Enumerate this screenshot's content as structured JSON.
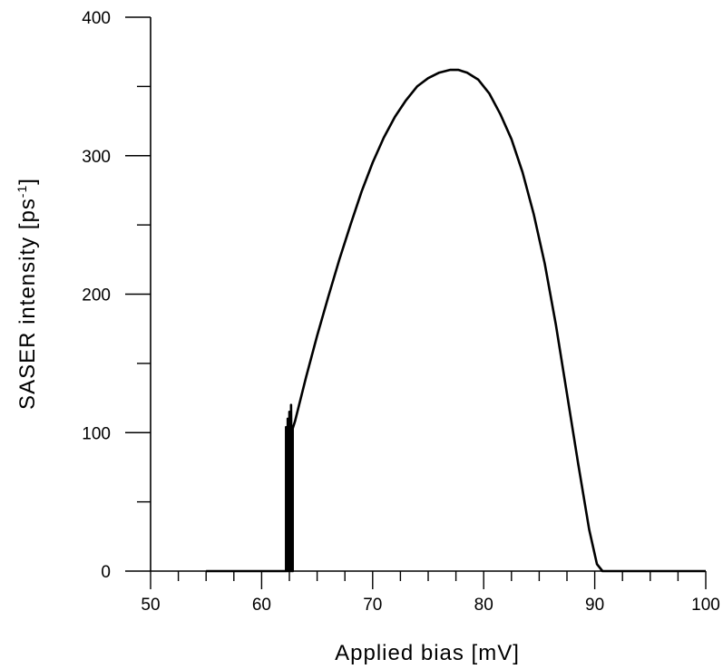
{
  "chart_data": {
    "type": "line",
    "xlabel": "Applied bias [mV]",
    "ylabel": "SASER intensity [ps",
    "ylabel_exponent": "-1",
    "ylabel_close": "]",
    "xlim": [
      50,
      100
    ],
    "ylim": [
      0,
      400
    ],
    "xticks": [
      50,
      60,
      70,
      80,
      90,
      100
    ],
    "yticks": [
      0,
      100,
      200,
      300,
      400
    ],
    "x_minor_step": 2.5,
    "y_minor_step": 50,
    "grid": false,
    "line_color": "#000000",
    "series": [
      {
        "x": [
          55,
          62.2,
          62.2,
          62.35,
          62.35,
          62.5,
          62.5,
          62.65,
          62.65,
          62.8,
          62.8,
          63.0,
          64,
          65,
          66,
          67,
          68,
          69,
          70,
          71,
          72,
          73,
          74,
          75,
          76,
          77,
          77.7,
          78.5,
          79.5,
          80.5,
          81.5,
          82.5,
          83.5,
          84.5,
          85.5,
          86.5,
          87.5,
          88.5,
          89.5,
          90.2,
          90.7,
          91,
          100
        ],
        "y": [
          0,
          0,
          104,
          0,
          110,
          0,
          115,
          0,
          120,
          0,
          103,
          108,
          140,
          170,
          198,
          225,
          250,
          274,
          295,
          313,
          328,
          340,
          350,
          356,
          360,
          362,
          362,
          360,
          355,
          345,
          330,
          312,
          288,
          258,
          222,
          178,
          128,
          78,
          30,
          5,
          0,
          0,
          0
        ]
      }
    ]
  }
}
